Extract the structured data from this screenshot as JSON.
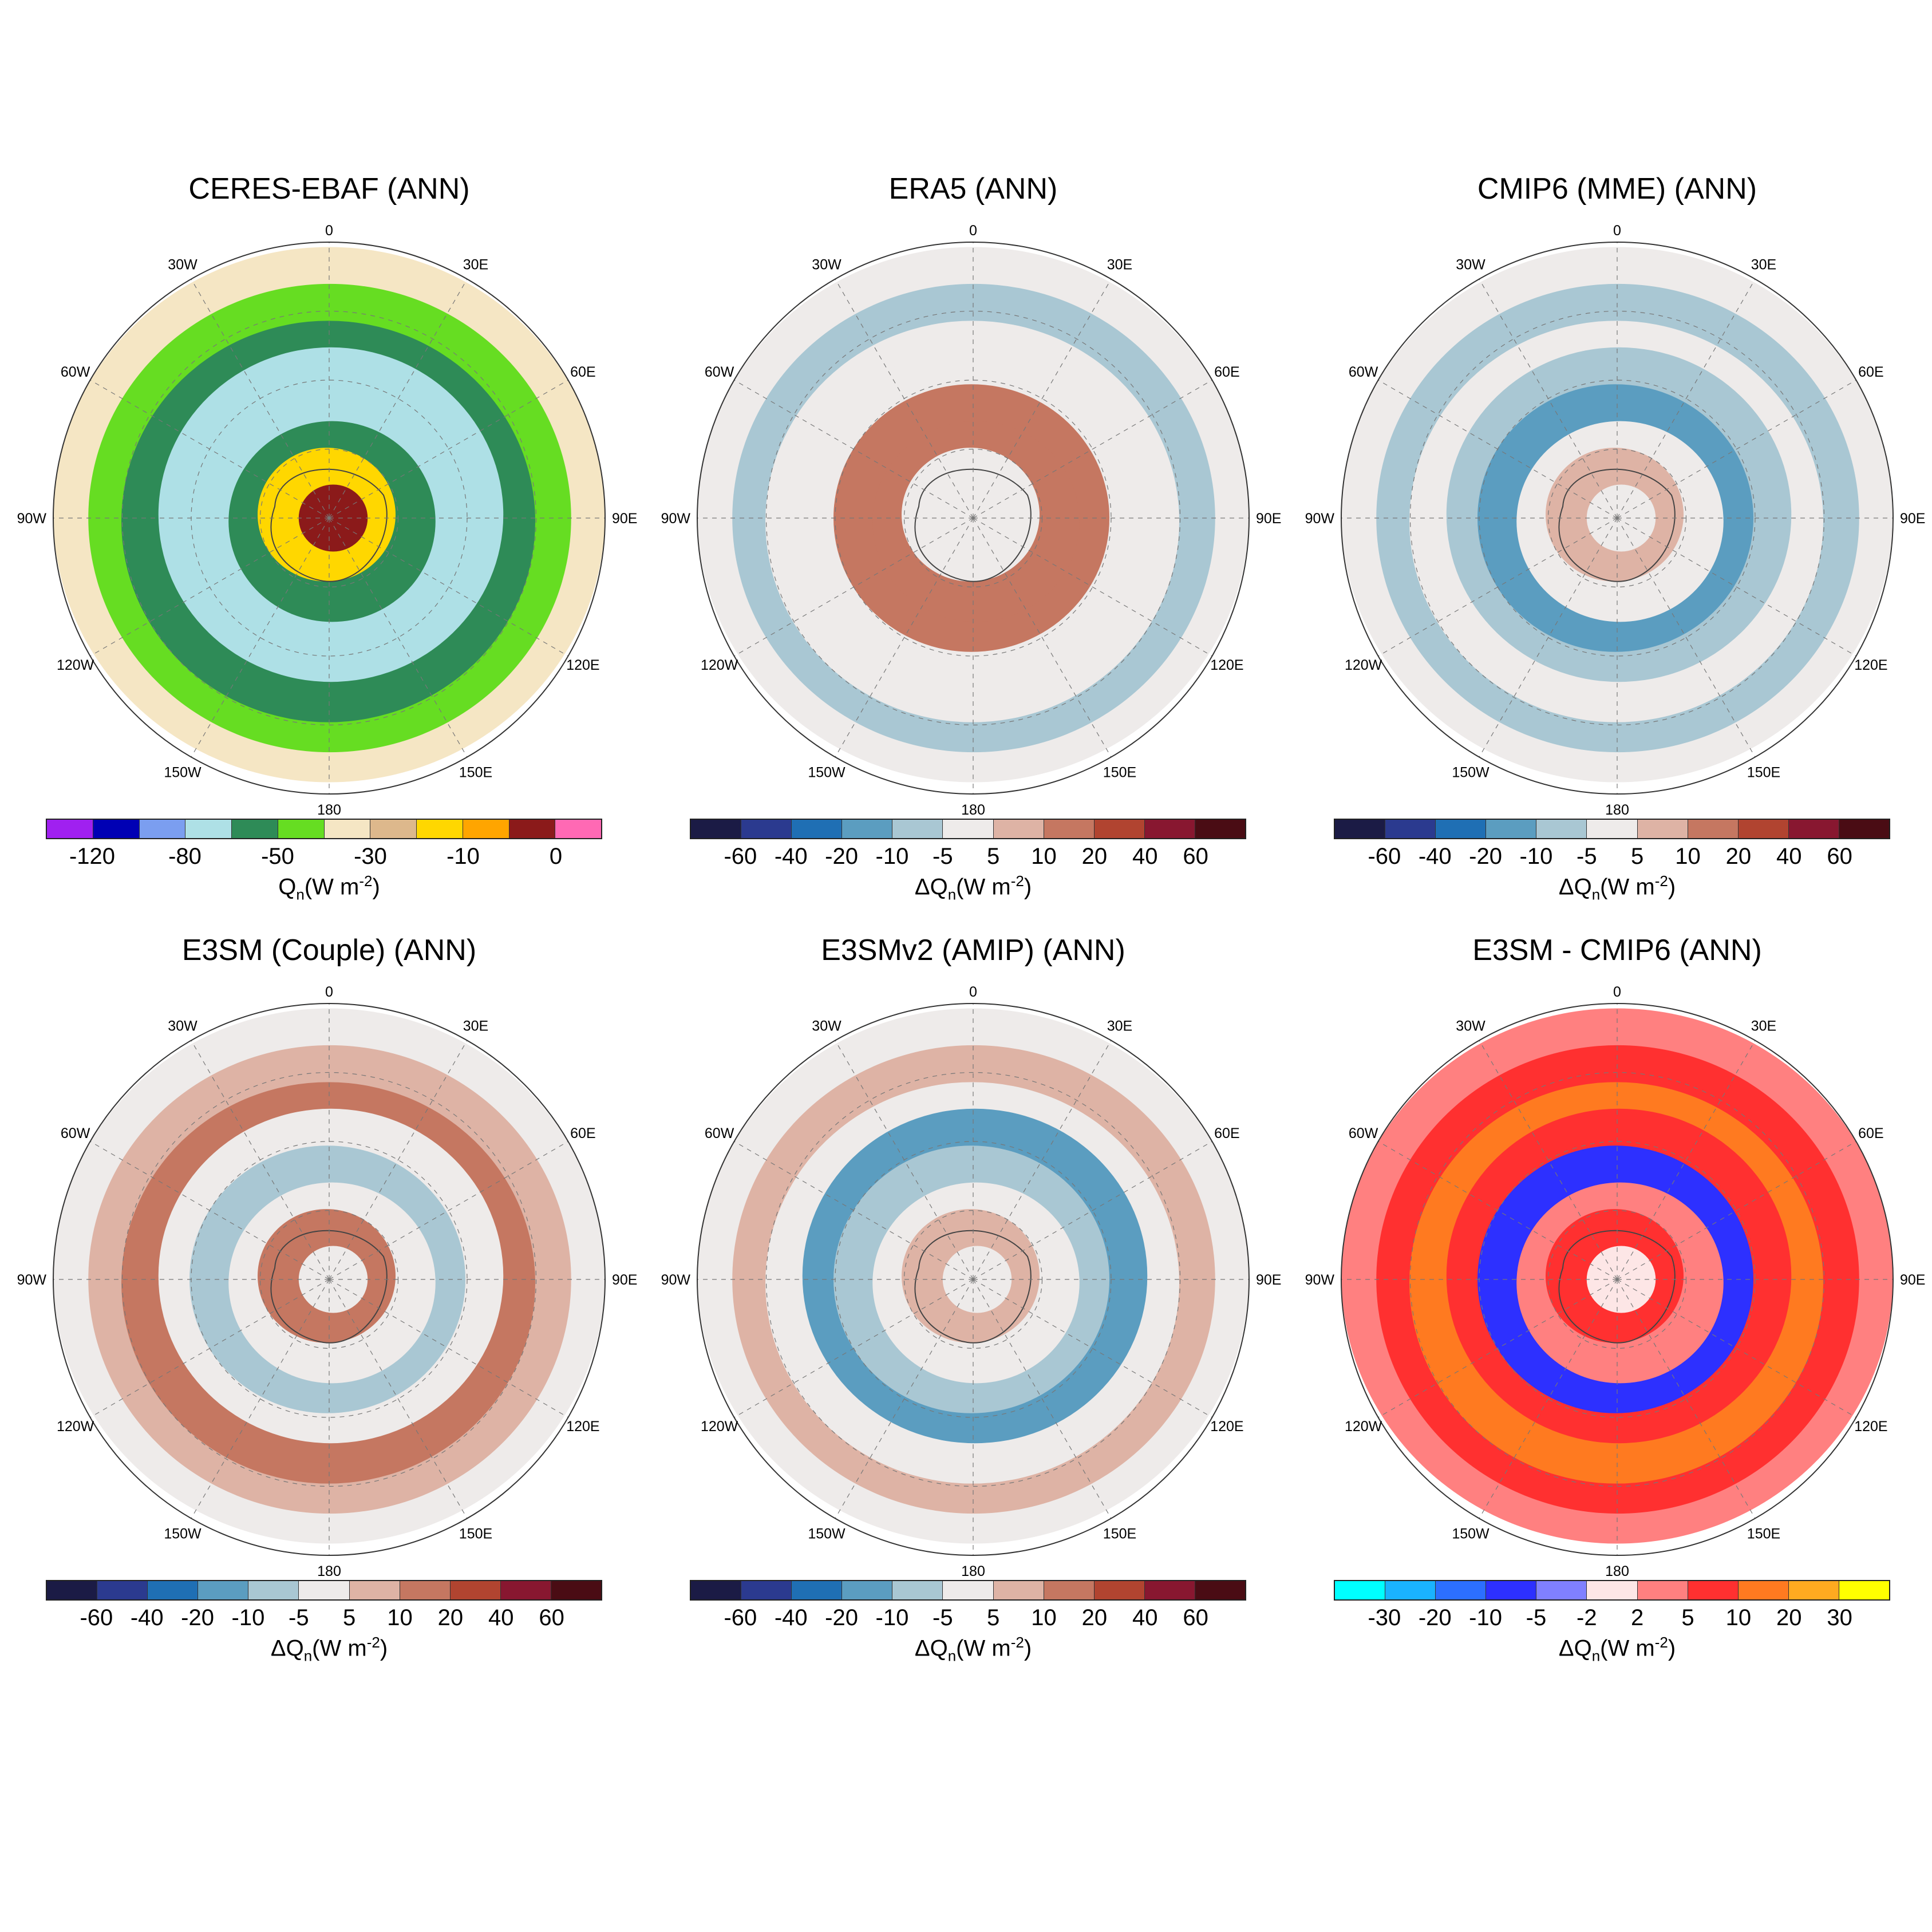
{
  "panels": [
    {
      "id": "ceres",
      "title": "CERES-EBAF  (ANN)",
      "colorbar": {
        "colors": [
          "#a020f0",
          "#0000b4",
          "#7b9ef0",
          "#aee0e6",
          "#2e8b57",
          "#66dd22",
          "#f5e6c4",
          "#ddb88c",
          "#ffd700",
          "#ffa500",
          "#8b1a1a",
          "#ff69b4"
        ],
        "labels": [
          "-120",
          "-80",
          "-50",
          "-30",
          "-10",
          "0"
        ],
        "unit_symbol": "Q",
        "unit_sub": "n",
        "unit_rest": "(W m",
        "unit_sup": "-2",
        "unit_close": ")"
      },
      "rings": [
        "#f5e6c4",
        "#66dd22",
        "#2e8b57",
        "#aee0e6",
        "#aee0e6",
        "#2e8b57",
        "#ffd700",
        "#8b1a1a"
      ]
    },
    {
      "id": "era5",
      "title": "ERA5  (ANN)",
      "colorbar": {
        "colors": [
          "#1b1b45",
          "#2b3a8f",
          "#1f6fb4",
          "#5b9dc0",
          "#a9c7d3",
          "#eeebea",
          "#deb3a5",
          "#c57761",
          "#b14430",
          "#881730",
          "#4a0c14"
        ],
        "labels": [
          "-60",
          "-40",
          "-20",
          "-10",
          "-5",
          "5",
          "10",
          "20",
          "40",
          "60"
        ],
        "unit_symbol": "ΔQ",
        "unit_sub": "n",
        "unit_rest": "(W m",
        "unit_sup": "-2",
        "unit_close": ")"
      },
      "rings": [
        "#eeebea",
        "#a9c7d3",
        "#eeebea",
        "#eeebea",
        "#c57761",
        "#c57761",
        "#eeebea",
        "#eeebea"
      ]
    },
    {
      "id": "cmip6",
      "title": "CMIP6 (MME)  (ANN)",
      "colorbar": {
        "colors": [
          "#1b1b45",
          "#2b3a8f",
          "#1f6fb4",
          "#5b9dc0",
          "#a9c7d3",
          "#eeebea",
          "#deb3a5",
          "#c57761",
          "#b14430",
          "#881730",
          "#4a0c14"
        ],
        "labels": [
          "-60",
          "-40",
          "-20",
          "-10",
          "-5",
          "5",
          "10",
          "20",
          "40",
          "60"
        ],
        "unit_symbol": "ΔQ",
        "unit_sub": "n",
        "unit_rest": "(W m",
        "unit_sup": "-2",
        "unit_close": ")"
      },
      "rings": [
        "#eeebea",
        "#a9c7d3",
        "#eeebea",
        "#a9c7d3",
        "#5b9dc0",
        "#eeebea",
        "#deb3a5",
        "#eeebea"
      ]
    },
    {
      "id": "e3sm-couple",
      "title": "E3SM (Couple)  (ANN)",
      "colorbar": {
        "colors": [
          "#1b1b45",
          "#2b3a8f",
          "#1f6fb4",
          "#5b9dc0",
          "#a9c7d3",
          "#eeebea",
          "#deb3a5",
          "#c57761",
          "#b14430",
          "#881730",
          "#4a0c14"
        ],
        "labels": [
          "-60",
          "-40",
          "-20",
          "-10",
          "-5",
          "5",
          "10",
          "20",
          "40",
          "60"
        ],
        "unit_symbol": "ΔQ",
        "unit_sub": "n",
        "unit_rest": "(W m",
        "unit_sup": "-2",
        "unit_close": ")"
      },
      "rings": [
        "#eeebea",
        "#deb3a5",
        "#c57761",
        "#eeebea",
        "#a9c7d3",
        "#eeebea",
        "#c57761",
        "#eeebea"
      ]
    },
    {
      "id": "e3smv2-amip",
      "title": "E3SMv2 (AMIP)  (ANN)",
      "colorbar": {
        "colors": [
          "#1b1b45",
          "#2b3a8f",
          "#1f6fb4",
          "#5b9dc0",
          "#a9c7d3",
          "#eeebea",
          "#deb3a5",
          "#c57761",
          "#b14430",
          "#881730",
          "#4a0c14"
        ],
        "labels": [
          "-60",
          "-40",
          "-20",
          "-10",
          "-5",
          "5",
          "10",
          "20",
          "40",
          "60"
        ],
        "unit_symbol": "ΔQ",
        "unit_sub": "n",
        "unit_rest": "(W m",
        "unit_sup": "-2",
        "unit_close": ")"
      },
      "rings": [
        "#eeebea",
        "#deb3a5",
        "#eeebea",
        "#5b9dc0",
        "#a9c7d3",
        "#eeebea",
        "#deb3a5",
        "#eeebea"
      ]
    },
    {
      "id": "e3sm-minus-cmip6",
      "title": "E3SM - CMIP6  (ANN)",
      "colorbar": {
        "colors": [
          "#00ffff",
          "#1ab3ff",
          "#2c6fff",
          "#2d30ff",
          "#8080ff",
          "#fde6e6",
          "#ff8080",
          "#ff3030",
          "#ff7a20",
          "#ffaa20",
          "#ffff00"
        ],
        "labels": [
          "-30",
          "-20",
          "-10",
          "-5",
          "-2",
          "2",
          "5",
          "10",
          "20",
          "30"
        ],
        "unit_symbol": "ΔQ",
        "unit_sub": "n",
        "unit_rest": "(W m",
        "unit_sup": "-2",
        "unit_close": ")"
      },
      "rings": [
        "#ff8080",
        "#ff3030",
        "#ff7a20",
        "#ff3030",
        "#2d30ff",
        "#ff8080",
        "#ff3030",
        "#fde6e6"
      ]
    }
  ],
  "longitude_labels": [
    "0",
    "30E",
    "60E",
    "90E",
    "120E",
    "150E",
    "180",
    "150W",
    "120W",
    "90W",
    "60W",
    "30W"
  ]
}
